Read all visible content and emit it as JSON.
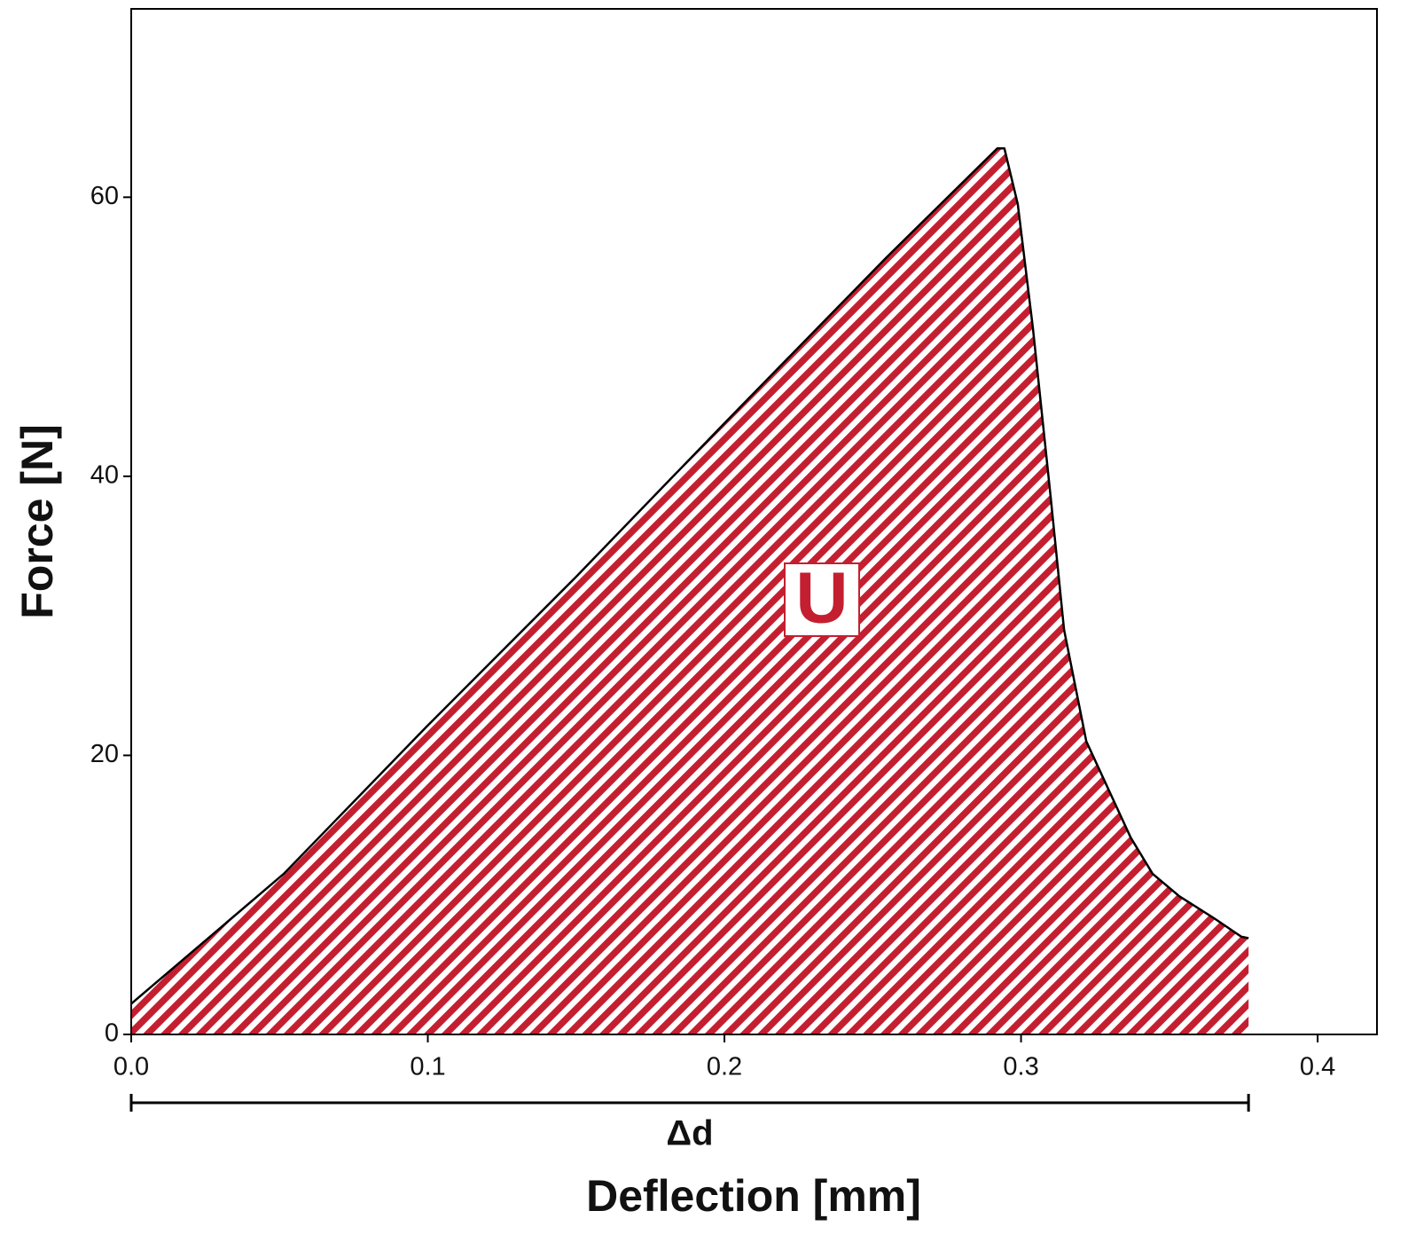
{
  "chart_data": {
    "type": "area",
    "x_label": "Deflection [mm]",
    "y_label": "Force [N]",
    "x": [
      0,
      0.0514,
      0.0993,
      0.15,
      0.2,
      0.2547,
      0.292,
      0.2944,
      0.2989,
      0.304,
      0.31,
      0.3145,
      0.322,
      0.3294,
      0.337,
      0.3444,
      0.3534,
      0.3653,
      0.3743,
      0.3767
    ],
    "values": [
      2.2,
      11.5,
      22.0,
      32.8,
      43.8,
      55.7,
      63.5,
      63.5,
      59.5,
      50.6,
      38.5,
      29.0,
      21.0,
      17.6,
      14.1,
      11.5,
      9.9,
      8.3,
      7.0,
      6.9
    ],
    "color": "#c41f30",
    "xlim": [
      0,
      0.42
    ],
    "ylim": [
      0,
      73.5
    ],
    "xticks": [
      {
        "value": 0,
        "label": "0.0"
      },
      0.1,
      0.2,
      0.3,
      0.4
    ],
    "yticks": [
      0,
      20,
      40,
      60
    ],
    "annotations": [
      {
        "text": "U"
      },
      {
        "text": "Δd",
        "span": [
          0,
          0.3767
        ]
      }
    ]
  }
}
